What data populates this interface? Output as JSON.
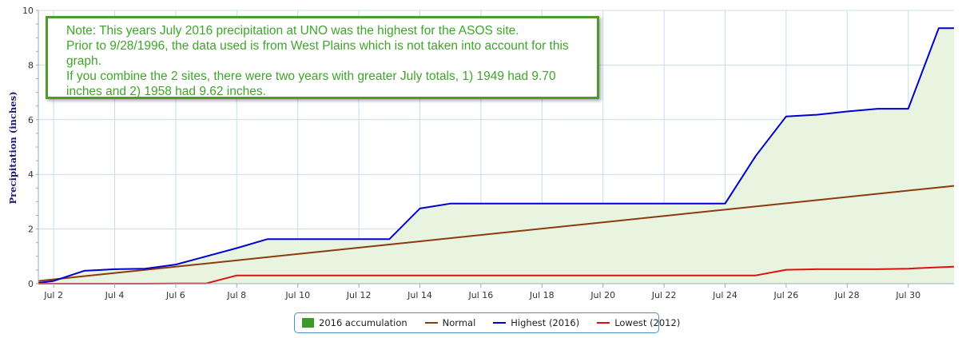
{
  "chart_data": {
    "type": "line",
    "ylabel": "Precipitation (inches)",
    "ylim": [
      0,
      10
    ],
    "yticks": [
      0,
      2,
      4,
      6,
      8,
      10
    ],
    "xlim": [
      1.5,
      31.5
    ],
    "xticks": [
      {
        "x": 2,
        "label": "Jul 2"
      },
      {
        "x": 4,
        "label": "Jul 4"
      },
      {
        "x": 6,
        "label": "Jul 6"
      },
      {
        "x": 8,
        "label": "Jul 8"
      },
      {
        "x": 10,
        "label": "Jul 10"
      },
      {
        "x": 12,
        "label": "Jul 12"
      },
      {
        "x": 14,
        "label": "Jul 14"
      },
      {
        "x": 16,
        "label": "Jul 16"
      },
      {
        "x": 18,
        "label": "Jul 18"
      },
      {
        "x": 20,
        "label": "Jul 20"
      },
      {
        "x": 22,
        "label": "Jul 22"
      },
      {
        "x": 24,
        "label": "Jul 24"
      },
      {
        "x": 26,
        "label": "Jul 26"
      },
      {
        "x": 28,
        "label": "Jul 28"
      },
      {
        "x": 30,
        "label": "Jul 30"
      }
    ],
    "grid": true,
    "legend_position": "bottom",
    "series": [
      {
        "name": "2016 accumulation",
        "type": "area",
        "color": "#3c9a28",
        "fill": "#e8f3e0",
        "x": [
          1.5,
          2,
          3,
          4,
          5,
          6,
          7,
          8,
          9,
          10,
          11,
          12,
          13,
          14,
          15,
          16,
          17,
          18,
          19,
          20,
          21,
          22,
          23,
          24,
          25,
          26,
          27,
          28,
          29,
          30,
          31,
          31.5
        ],
        "y": [
          0.03,
          0.1,
          0.47,
          0.53,
          0.55,
          0.7,
          1.0,
          1.3,
          1.63,
          1.63,
          1.63,
          1.63,
          1.63,
          2.75,
          2.93,
          2.93,
          2.93,
          2.93,
          2.93,
          2.93,
          2.93,
          2.93,
          2.93,
          2.93,
          4.67,
          6.12,
          6.18,
          6.3,
          6.4,
          6.4,
          9.35,
          9.35
        ]
      },
      {
        "name": "Normal",
        "type": "line",
        "color": "#8b3a0e",
        "x": [
          1.5,
          31.5
        ],
        "y": [
          0.1,
          3.58
        ]
      },
      {
        "name": "Highest (2016)",
        "type": "line",
        "color": "#0000cc",
        "x": [
          1.5,
          2,
          3,
          4,
          5,
          6,
          7,
          8,
          9,
          10,
          11,
          12,
          13,
          14,
          15,
          16,
          17,
          18,
          19,
          20,
          21,
          22,
          23,
          24,
          25,
          26,
          27,
          28,
          29,
          30,
          31,
          31.5
        ],
        "y": [
          0.03,
          0.1,
          0.47,
          0.53,
          0.55,
          0.7,
          1.0,
          1.3,
          1.63,
          1.63,
          1.63,
          1.63,
          1.63,
          2.75,
          2.93,
          2.93,
          2.93,
          2.93,
          2.93,
          2.93,
          2.93,
          2.93,
          2.93,
          2.93,
          4.67,
          6.12,
          6.18,
          6.3,
          6.4,
          6.4,
          9.35,
          9.35
        ]
      },
      {
        "name": "Lowest (2012)",
        "type": "line",
        "color": "#e01010",
        "x": [
          1.5,
          2,
          3,
          4,
          5,
          6,
          7,
          8,
          9,
          10,
          11,
          12,
          13,
          14,
          15,
          16,
          17,
          18,
          19,
          20,
          21,
          22,
          23,
          24,
          25,
          26,
          27,
          28,
          29,
          30,
          31,
          31.5
        ],
        "y": [
          0,
          0,
          0,
          0,
          0,
          0.01,
          0.01,
          0.3,
          0.3,
          0.3,
          0.3,
          0.3,
          0.3,
          0.3,
          0.3,
          0.3,
          0.3,
          0.3,
          0.3,
          0.3,
          0.3,
          0.3,
          0.3,
          0.3,
          0.3,
          0.51,
          0.53,
          0.53,
          0.53,
          0.55,
          0.6,
          0.62
        ]
      }
    ]
  },
  "note": {
    "lines": [
      "Note: This years July 2016 precipitation at UNO was the highest for the ASOS site.",
      "Prior to 9/28/1996, the data used is from West Plains which is not taken into account for this",
      "graph.",
      "If you combine the 2 sites, there were two years with greater July totals, 1) 1949 had 9.70",
      "inches and 2) 1958 had 9.62 inches."
    ]
  },
  "legend": {
    "items": [
      {
        "label": "2016 accumulation",
        "color": "#3c9a28",
        "kind": "box"
      },
      {
        "label": "Normal",
        "color": "#8b3a0e",
        "kind": "line"
      },
      {
        "label": "Highest (2016)",
        "color": "#0000cc",
        "kind": "line"
      },
      {
        "label": "Lowest (2012)",
        "color": "#e01010",
        "kind": "line"
      }
    ]
  }
}
